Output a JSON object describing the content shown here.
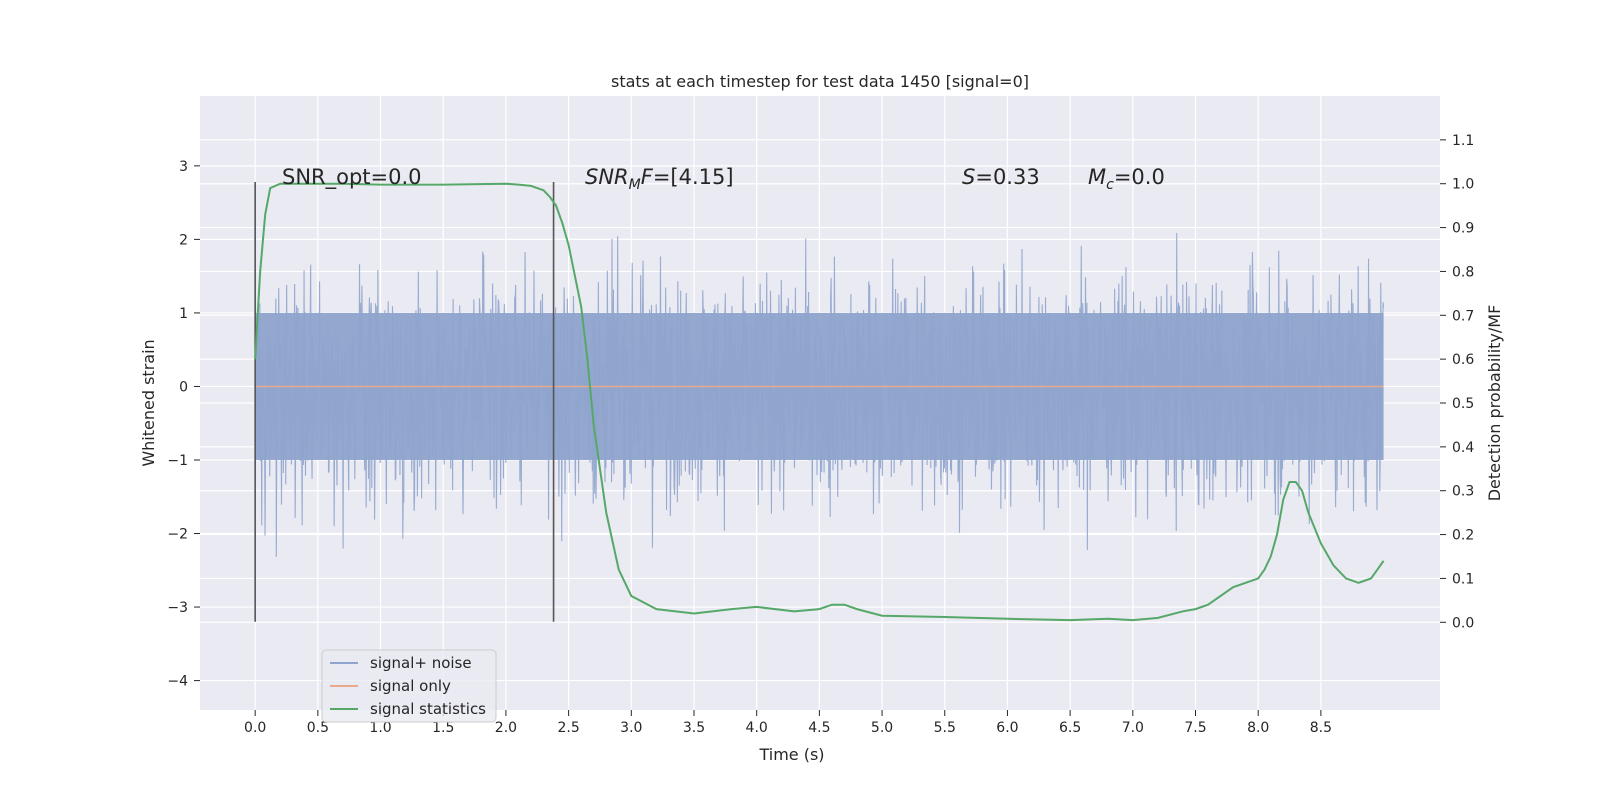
{
  "chart_data": {
    "type": "line",
    "title": "stats at each timestep for test data 1450 [signal=0]",
    "xlabel": "Time (s)",
    "ylabel": "Whitened strain",
    "ylabel_right": "Detection probability/MF",
    "xlim": [
      -0.44,
      9.45
    ],
    "ylim": [
      -4.4,
      3.95
    ],
    "ylim_right": [
      -0.2,
      1.2
    ],
    "x_ticks": [
      0.0,
      0.5,
      1.0,
      1.5,
      2.0,
      2.5,
      3.0,
      3.5,
      4.0,
      4.5,
      5.0,
      5.5,
      6.0,
      6.5,
      7.0,
      7.5,
      8.0,
      8.5
    ],
    "x_tick_labels": [
      "0.0",
      "0.5",
      "1.0",
      "1.5",
      "2.0",
      "2.5",
      "3.0",
      "3.5",
      "4.0",
      "4.5",
      "5.0",
      "5.5",
      "6.0",
      "6.5",
      "7.0",
      "7.5",
      "8.0",
      "8.5"
    ],
    "y_ticks": [
      3,
      2,
      1,
      0,
      -1,
      -2,
      -3,
      -4
    ],
    "y_tick_labels": [
      "3",
      "2",
      "1",
      "0",
      "−1",
      "−2",
      "−3",
      "−4"
    ],
    "y_right_ticks": [
      1.1,
      1.0,
      0.9,
      0.8,
      0.7,
      0.6,
      0.5,
      0.4,
      0.3,
      0.2,
      0.1,
      0.0
    ],
    "y_right_tick_labels": [
      "1.1",
      "1.0",
      "0.9",
      "0.8",
      "0.7",
      "0.6",
      "0.5",
      "0.4",
      "0.3",
      "0.2",
      "0.1",
      "0.0"
    ],
    "grid": true,
    "legend_position": "lower-left",
    "colors": {
      "signal_noise": "#8fa4cc",
      "signal_only": "#dd8452",
      "signal_statistics": "#55a868",
      "vlines": "#555555",
      "background": "#eaeaf2"
    },
    "series": [
      {
        "name": "signal+ noise",
        "note_range": [
          0,
          9
        ]
      },
      {
        "name": "signal only",
        "x": [
          0,
          9
        ],
        "y": [
          0,
          0
        ]
      },
      {
        "name": "signal statistics",
        "x": [
          0.0,
          0.04,
          0.08,
          0.12,
          0.2,
          0.4,
          0.7,
          1.0,
          1.5,
          2.0,
          2.1,
          2.2,
          2.25,
          2.3,
          2.35,
          2.4,
          2.45,
          2.5,
          2.55,
          2.6,
          2.65,
          2.7,
          2.8,
          2.9,
          3.0,
          3.2,
          3.5,
          3.8,
          4.0,
          4.3,
          4.5,
          4.6,
          4.7,
          4.8,
          5.0,
          5.5,
          6.0,
          6.5,
          6.8,
          7.0,
          7.2,
          7.4,
          7.5,
          7.6,
          7.7,
          7.8,
          7.9,
          8.0,
          8.05,
          8.1,
          8.15,
          8.2,
          8.25,
          8.3,
          8.35,
          8.4,
          8.5,
          8.6,
          8.7,
          8.8,
          8.85,
          8.9,
          8.95,
          9.0
        ],
        "y": [
          0.6,
          0.8,
          0.93,
          0.99,
          1.0,
          1.0,
          1.0,
          0.998,
          0.998,
          1.0,
          0.998,
          0.995,
          0.99,
          0.985,
          0.97,
          0.95,
          0.91,
          0.86,
          0.79,
          0.72,
          0.6,
          0.45,
          0.25,
          0.12,
          0.06,
          0.03,
          0.02,
          0.03,
          0.035,
          0.025,
          0.03,
          0.04,
          0.04,
          0.03,
          0.015,
          0.012,
          0.008,
          0.005,
          0.008,
          0.005,
          0.01,
          0.025,
          0.03,
          0.04,
          0.06,
          0.08,
          0.09,
          0.1,
          0.12,
          0.15,
          0.2,
          0.28,
          0.32,
          0.32,
          0.3,
          0.25,
          0.18,
          0.13,
          0.1,
          0.09,
          0.095,
          0.1,
          0.12,
          0.14
        ]
      }
    ],
    "vlines": [
      0.0,
      2.38
    ],
    "vline_ylim": [
      -3.2,
      2.78
    ],
    "annotations": {
      "snr_opt_prefix": "SNR_opt=",
      "snr_opt_value": "0.0",
      "snr_mf_main": "SNR",
      "snr_mf_sub": "M",
      "snr_mf_tail": "F",
      "snr_mf_value": "=[4.15]",
      "s_symbol": "S",
      "s_value": "=0.33",
      "mc_symbol": "M",
      "mc_sub": "c",
      "mc_value": "=0.0"
    },
    "legend": {
      "entries": [
        "signal+ noise",
        "signal only",
        "signal statistics"
      ]
    }
  }
}
